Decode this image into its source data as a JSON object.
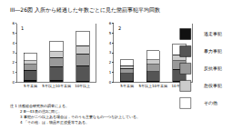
{
  "title": "III―26図 入所から経過した年数ごとに見た懲罰事犯平均回数",
  "notes": [
    "注 1 法務総合研究所の調査による。",
    "2 Ⅲ―43表の注2に同じ。",
    "3 事犯が二つ以上ある場合は，そのうち主要なもの一つを計上している。",
    "4 「その他」は，物品不正授受等である。"
  ],
  "chart_data": [
    {
      "type": "bar",
      "title": "1",
      "stacked": true,
      "grid": false,
      "categories": [
        "5年未満",
        "5年以上10年未満",
        "10年以上"
      ],
      "ylim": [
        0,
        6
      ],
      "yticks": [
        0,
        1,
        2,
        3,
        4,
        5,
        6
      ],
      "series": [
        {
          "name": "逃走事犯",
          "color": "#111111",
          "values": [
            0.2,
            0.2,
            0.1
          ]
        },
        {
          "name": "暴力事犯",
          "color": "#555555",
          "values": [
            1.0,
            1.4,
            1.6
          ]
        },
        {
          "name": "反抗事犯",
          "color": "#999999",
          "values": [
            0.6,
            0.9,
            1.2
          ]
        },
        {
          "name": "怠役事犯",
          "color": "#cccccc",
          "values": [
            0.4,
            0.6,
            0.8
          ]
        },
        {
          "name": "その他",
          "color": "#ffffff",
          "values": [
            0.8,
            1.1,
            1.5
          ]
        }
      ]
    },
    {
      "type": "bar",
      "title": "2",
      "stacked": true,
      "grid": false,
      "categories": [
        "5年未満",
        "5年以上10年未満",
        "10年以上"
      ],
      "ylim": [
        0,
        6
      ],
      "yticks": [
        0,
        1,
        2,
        3,
        4,
        5,
        6
      ],
      "series": [
        {
          "name": "逃走事犯",
          "color": "#111111",
          "values": [
            0.1,
            0.1,
            0.1
          ]
        },
        {
          "name": "暴力事犯",
          "color": "#555555",
          "values": [
            0.8,
            1.0,
            1.2
          ]
        },
        {
          "name": "反抗事犯",
          "color": "#999999",
          "values": [
            0.5,
            0.7,
            0.9
          ]
        },
        {
          "name": "怠役事犯",
          "color": "#cccccc",
          "values": [
            0.3,
            0.5,
            0.6
          ]
        },
        {
          "name": "その他",
          "color": "#ffffff",
          "values": [
            0.6,
            0.9,
            1.1
          ]
        }
      ]
    }
  ]
}
